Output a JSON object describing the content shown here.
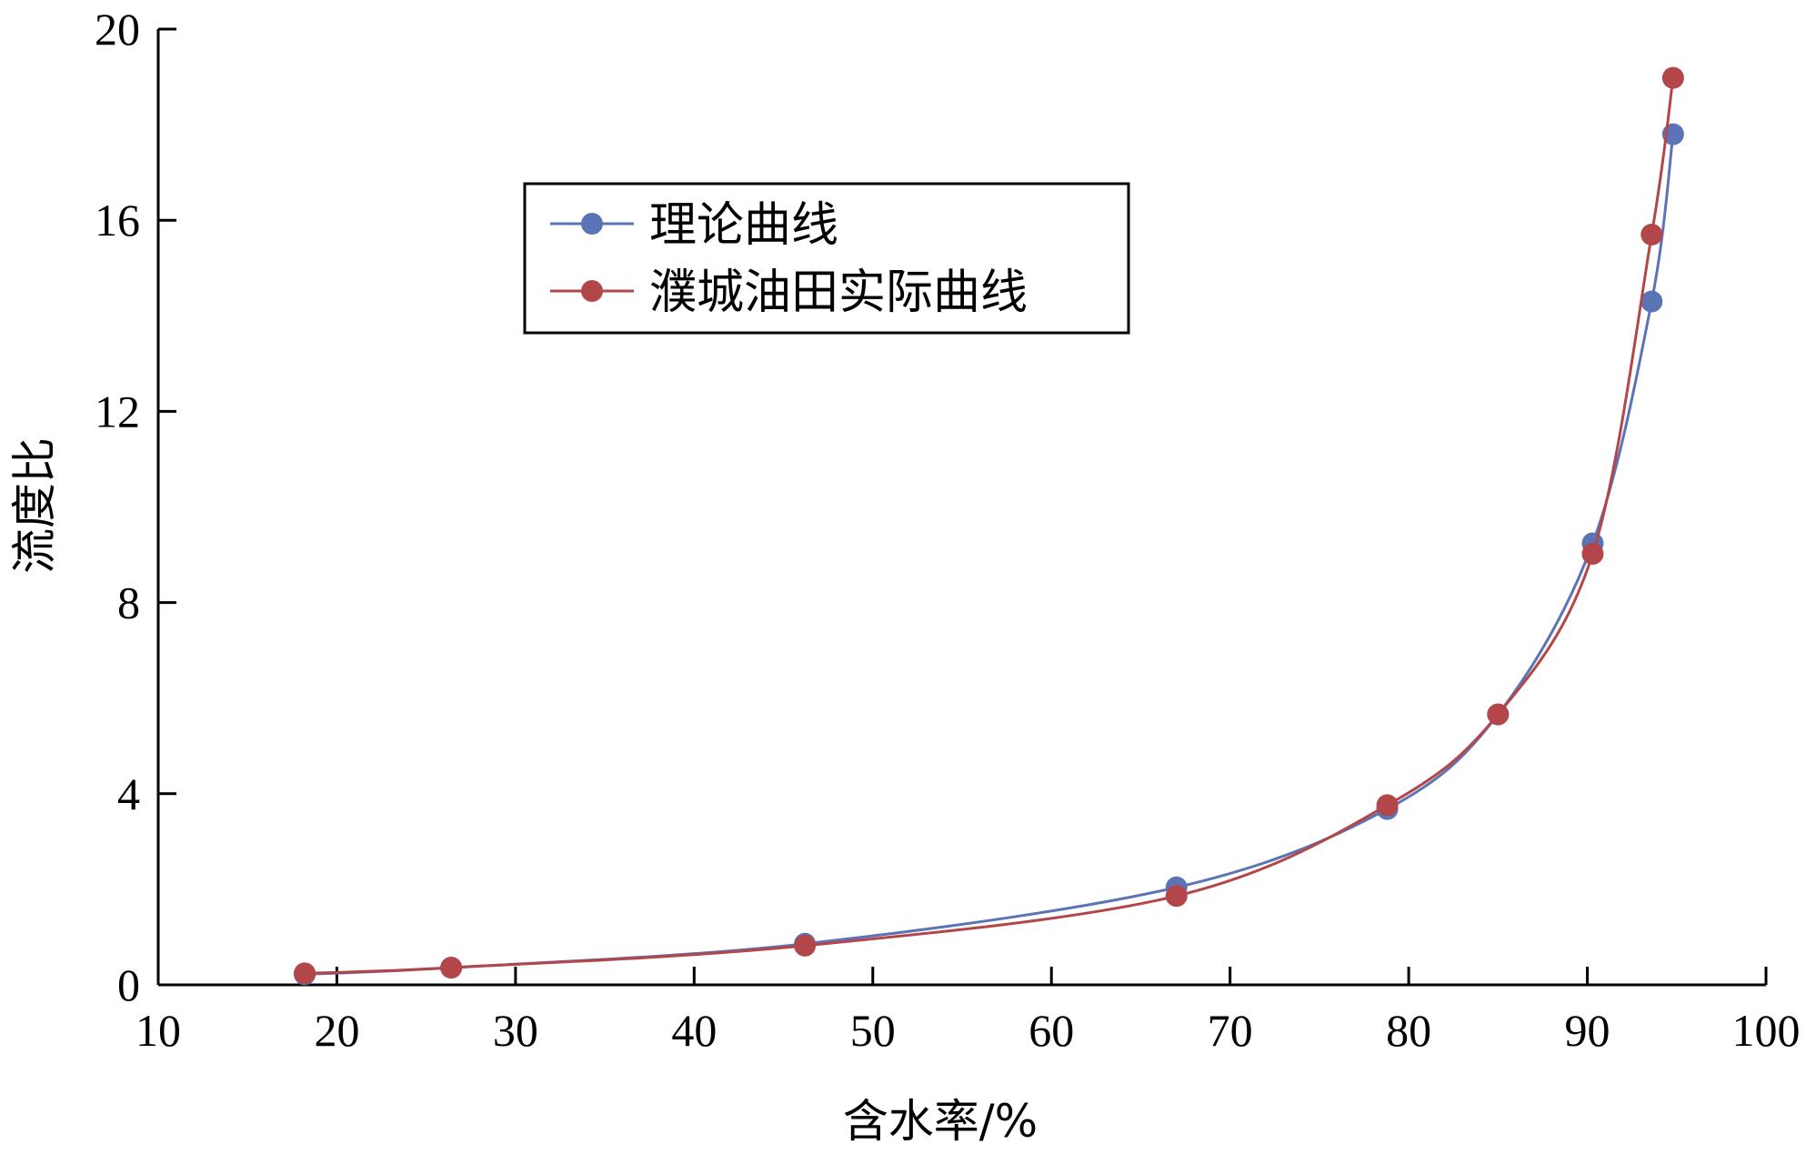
{
  "chart_data": {
    "type": "line",
    "title": "",
    "xlabel": "含水率/%",
    "ylabel": "流度比",
    "xlim": [
      10,
      100
    ],
    "ylim": [
      0,
      20
    ],
    "x_ticks": [
      10,
      20,
      30,
      40,
      50,
      60,
      70,
      80,
      90,
      100
    ],
    "y_ticks": [
      0,
      4,
      8,
      12,
      16,
      20
    ],
    "grid": false,
    "legend_position": "top-center",
    "series": [
      {
        "name": "理论曲线",
        "color": "#5b74b6",
        "x": [
          18.2,
          26.4,
          46.2,
          67.0,
          78.8,
          85.0,
          90.3,
          93.6,
          94.8
        ],
        "y": [
          0.22,
          0.36,
          0.86,
          2.04,
          3.68,
          5.66,
          9.24,
          14.3,
          17.8
        ]
      },
      {
        "name": "濮城油田实际曲线",
        "color": "#b34649",
        "x": [
          18.2,
          26.4,
          46.2,
          67.0,
          78.8,
          85.0,
          90.3,
          93.6,
          94.8
        ],
        "y": [
          0.24,
          0.36,
          0.82,
          1.86,
          3.76,
          5.66,
          9.02,
          15.7,
          18.98
        ]
      }
    ]
  }
}
